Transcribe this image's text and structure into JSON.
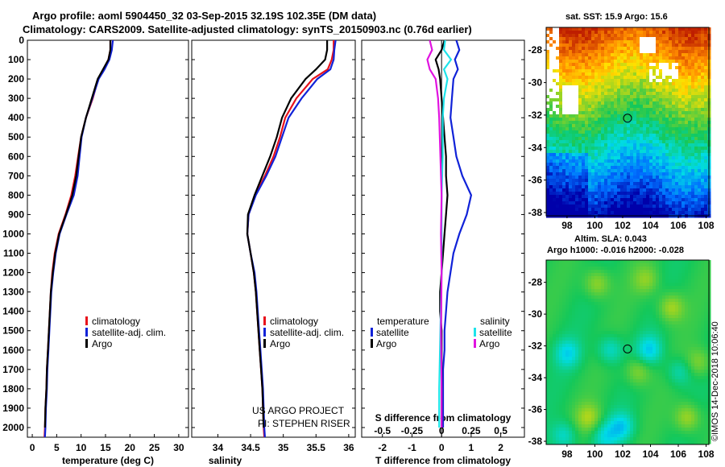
{
  "header": {
    "line1": "Argo profile: aoml 5904450_32 03-Sep-2015 32.19S 102.35E (DM data)",
    "line2": "Climatology: CARS2009. Satellite-adjusted climatology: synTS_20150903.nc (0.76d earlier)"
  },
  "colors": {
    "climatology": "#e8121b",
    "satellite": "#1022d8",
    "argo": "#000000",
    "sal_satellite": "#1de3ea",
    "sal_argo": "#e013e0"
  },
  "legend": {
    "climatology": "climatology",
    "satellite_adj": "satellite-adj. clim.",
    "argo": "Argo",
    "satellite": "satellite",
    "temperature_hdr": "temperature",
    "salinity_hdr": "salinity"
  },
  "credits": {
    "project": "US ARGO PROJECT",
    "pi": "PI: STEPHEN RISER",
    "imos": "©IMOS 14-Dec-2018 10:06:40"
  },
  "chart_data": [
    {
      "type": "line",
      "id": "temperature",
      "xlabel": "temperature (deg C)",
      "ylabel": "",
      "xlim": [
        -1,
        32
      ],
      "ylim": [
        2050,
        0
      ],
      "xticks": [
        0,
        5,
        10,
        15,
        20,
        25,
        30
      ],
      "yticks": [
        0,
        100,
        200,
        300,
        400,
        500,
        600,
        700,
        800,
        900,
        1000,
        1100,
        1200,
        1300,
        1400,
        1500,
        1600,
        1700,
        1800,
        1900,
        2000
      ],
      "series": [
        {
          "name": "climatology",
          "color": "#e8121b",
          "points": [
            [
              16,
              0
            ],
            [
              16,
              50
            ],
            [
              15.6,
              100
            ],
            [
              14.6,
              150
            ],
            [
              13.5,
              200
            ],
            [
              12.4,
              300
            ],
            [
              11,
              400
            ],
            [
              10,
              500
            ],
            [
              9.4,
              600
            ],
            [
              8.8,
              700
            ],
            [
              8,
              800
            ],
            [
              6.8,
              900
            ],
            [
              5.4,
              1000
            ],
            [
              4.6,
              1100
            ],
            [
              4.1,
              1200
            ],
            [
              3.8,
              1300
            ],
            [
              3.6,
              1400
            ],
            [
              3.4,
              1500
            ],
            [
              3.2,
              1600
            ],
            [
              3,
              1700
            ],
            [
              2.9,
              1800
            ],
            [
              2.7,
              1900
            ],
            [
              2.6,
              2000
            ],
            [
              2.5,
              2050
            ]
          ]
        },
        {
          "name": "satellite-adj. clim.",
          "color": "#1022d8",
          "points": [
            [
              16.5,
              0
            ],
            [
              16.3,
              50
            ],
            [
              15.8,
              100
            ],
            [
              14.8,
              150
            ],
            [
              13.6,
              200
            ],
            [
              12.3,
              300
            ],
            [
              11,
              400
            ],
            [
              10.1,
              500
            ],
            [
              9.7,
              600
            ],
            [
              9.3,
              700
            ],
            [
              8.5,
              800
            ],
            [
              7,
              900
            ],
            [
              5.6,
              1000
            ],
            [
              4.8,
              1100
            ],
            [
              4.3,
              1200
            ],
            [
              3.9,
              1300
            ],
            [
              3.7,
              1400
            ],
            [
              3.5,
              1500
            ],
            [
              3.3,
              1600
            ],
            [
              3.1,
              1700
            ],
            [
              3,
              1800
            ],
            [
              2.8,
              1900
            ],
            [
              2.7,
              2000
            ],
            [
              2.6,
              2050
            ]
          ]
        },
        {
          "name": "Argo",
          "color": "#000000",
          "points": [
            [
              16,
              0
            ],
            [
              16,
              50
            ],
            [
              15.6,
              100
            ],
            [
              14.5,
              150
            ],
            [
              13.4,
              200
            ],
            [
              12.2,
              300
            ],
            [
              11,
              400
            ],
            [
              10,
              500
            ],
            [
              9.5,
              600
            ],
            [
              9,
              700
            ],
            [
              8.2,
              800
            ],
            [
              6.9,
              900
            ],
            [
              5.5,
              1000
            ],
            [
              4.7,
              1100
            ],
            [
              4.2,
              1200
            ],
            [
              3.8,
              1300
            ],
            [
              3.6,
              1400
            ],
            [
              3.4,
              1500
            ],
            [
              3.2,
              1600
            ],
            [
              3,
              1700
            ],
            [
              2.9,
              1800
            ],
            [
              2.7,
              1900
            ],
            [
              2.6,
              2000
            ]
          ]
        }
      ]
    },
    {
      "type": "line",
      "id": "salinity",
      "xlabel": "salinity",
      "ylabel": "",
      "xlim": [
        33.6,
        36.1
      ],
      "ylim": [
        2050,
        0
      ],
      "xticks": [
        34,
        34.5,
        35,
        35.5,
        36
      ],
      "series": [
        {
          "name": "climatology",
          "color": "#e8121b",
          "points": [
            [
              35.77,
              0
            ],
            [
              35.77,
              50
            ],
            [
              35.74,
              100
            ],
            [
              35.68,
              150
            ],
            [
              35.45,
              200
            ],
            [
              35.2,
              300
            ],
            [
              35.03,
              400
            ],
            [
              34.95,
              500
            ],
            [
              34.85,
              600
            ],
            [
              34.72,
              700
            ],
            [
              34.57,
              800
            ],
            [
              34.47,
              900
            ],
            [
              34.45,
              1000
            ],
            [
              34.5,
              1100
            ],
            [
              34.55,
              1200
            ],
            [
              34.58,
              1300
            ],
            [
              34.6,
              1400
            ],
            [
              34.62,
              1500
            ],
            [
              34.64,
              1600
            ],
            [
              34.66,
              1700
            ],
            [
              34.68,
              1800
            ],
            [
              34.69,
              1900
            ],
            [
              34.7,
              2000
            ],
            [
              34.71,
              2050
            ]
          ]
        },
        {
          "name": "satellite-adj. clim.",
          "color": "#1022d8",
          "points": [
            [
              35.8,
              0
            ],
            [
              35.78,
              50
            ],
            [
              35.77,
              100
            ],
            [
              35.72,
              150
            ],
            [
              35.52,
              200
            ],
            [
              35.28,
              300
            ],
            [
              35.08,
              400
            ],
            [
              34.98,
              500
            ],
            [
              34.88,
              600
            ],
            [
              34.74,
              700
            ],
            [
              34.58,
              800
            ],
            [
              34.47,
              900
            ],
            [
              34.45,
              1000
            ],
            [
              34.5,
              1100
            ],
            [
              34.56,
              1200
            ],
            [
              34.59,
              1300
            ],
            [
              34.61,
              1400
            ],
            [
              34.63,
              1500
            ],
            [
              34.65,
              1600
            ],
            [
              34.67,
              1700
            ],
            [
              34.69,
              1800
            ],
            [
              34.7,
              1900
            ],
            [
              34.71,
              2000
            ],
            [
              34.72,
              2050
            ]
          ]
        },
        {
          "name": "Argo",
          "color": "#000000",
          "points": [
            [
              35.67,
              0
            ],
            [
              35.67,
              50
            ],
            [
              35.64,
              100
            ],
            [
              35.5,
              150
            ],
            [
              35.34,
              200
            ],
            [
              35.12,
              300
            ],
            [
              34.98,
              400
            ],
            [
              34.9,
              500
            ],
            [
              34.8,
              600
            ],
            [
              34.68,
              700
            ],
            [
              34.56,
              800
            ],
            [
              34.46,
              900
            ],
            [
              34.45,
              1000
            ],
            [
              34.5,
              1100
            ],
            [
              34.55,
              1200
            ],
            [
              34.58,
              1300
            ],
            [
              34.6,
              1400
            ],
            [
              34.62,
              1500
            ],
            [
              34.64,
              1600
            ],
            [
              34.66,
              1700
            ],
            [
              34.68,
              1800
            ],
            [
              34.69,
              1900
            ],
            [
              34.7,
              2000
            ]
          ]
        }
      ]
    },
    {
      "type": "line",
      "id": "difference",
      "xlabel": "T difference from climatology",
      "x2label": "S difference from climatology",
      "xlim": [
        -2.7,
        2.8
      ],
      "ylim": [
        2050,
        0
      ],
      "xticks": [
        -2,
        -1,
        0,
        1,
        2
      ],
      "x2ticks": [
        -0.5,
        -0.25,
        0,
        0.25,
        0.5
      ],
      "x2tick_labels": [
        "-0.5",
        "-0.25",
        "0",
        "0.25",
        "0.5"
      ],
      "x2lim": [
        -0.675,
        0.7
      ],
      "series": [
        {
          "name": "temperature satellite",
          "color": "#1022d8",
          "axis": "T",
          "points": [
            [
              0.5,
              0
            ],
            [
              0.6,
              50
            ],
            [
              0.45,
              100
            ],
            [
              0.55,
              150
            ],
            [
              0.4,
              200
            ],
            [
              0.35,
              300
            ],
            [
              0.3,
              400
            ],
            [
              0.4,
              500
            ],
            [
              0.5,
              600
            ],
            [
              0.7,
              700
            ],
            [
              1.0,
              800
            ],
            [
              0.85,
              900
            ],
            [
              0.6,
              1000
            ],
            [
              0.4,
              1100
            ],
            [
              0.3,
              1200
            ],
            [
              0.2,
              1300
            ],
            [
              0.15,
              1400
            ],
            [
              0.1,
              1500
            ],
            [
              0.1,
              1600
            ],
            [
              0.05,
              1700
            ],
            [
              0.05,
              1800
            ],
            [
              0.05,
              1900
            ],
            [
              0.05,
              2000
            ]
          ]
        },
        {
          "name": "temperature Argo",
          "color": "#000000",
          "axis": "T",
          "points": [
            [
              0.1,
              0
            ],
            [
              0.0,
              50
            ],
            [
              -0.2,
              100
            ],
            [
              -0.1,
              150
            ],
            [
              -0.05,
              200
            ],
            [
              0.0,
              300
            ],
            [
              0.05,
              400
            ],
            [
              0.1,
              500
            ],
            [
              0.15,
              600
            ],
            [
              0.15,
              700
            ],
            [
              0.2,
              800
            ],
            [
              0.15,
              900
            ],
            [
              0.1,
              1000
            ],
            [
              0.05,
              1100
            ],
            [
              0.0,
              1200
            ],
            [
              -0.05,
              1300
            ],
            [
              -0.05,
              1400
            ],
            [
              0.0,
              1500
            ],
            [
              0.0,
              1600
            ],
            [
              0.0,
              1700
            ],
            [
              0.0,
              1800
            ],
            [
              0.0,
              1900
            ],
            [
              0.0,
              2000
            ]
          ]
        },
        {
          "name": "salinity satellite",
          "color": "#1de3ea",
          "axis": "S",
          "points": [
            [
              0.03,
              0
            ],
            [
              0.02,
              50
            ],
            [
              0.08,
              100
            ],
            [
              0.02,
              150
            ],
            [
              0.05,
              200
            ],
            [
              0.02,
              300
            ],
            [
              0.01,
              400
            ],
            [
              0.01,
              600
            ],
            [
              0.0,
              800
            ],
            [
              0.0,
              1000
            ],
            [
              0.0,
              1200
            ],
            [
              -0.01,
              1500
            ],
            [
              -0.02,
              1800
            ],
            [
              -0.02,
              2000
            ]
          ]
        },
        {
          "name": "salinity Argo",
          "color": "#e013e0",
          "axis": "S",
          "points": [
            [
              -0.1,
              0
            ],
            [
              -0.08,
              50
            ],
            [
              -0.12,
              100
            ],
            [
              -0.1,
              150
            ],
            [
              -0.05,
              200
            ],
            [
              -0.03,
              300
            ],
            [
              -0.02,
              400
            ],
            [
              -0.01,
              600
            ],
            [
              0.0,
              800
            ],
            [
              -0.005,
              1000
            ],
            [
              0.0,
              1200
            ],
            [
              -0.005,
              1500
            ],
            [
              0.0,
              1800
            ],
            [
              0.0,
              2000
            ]
          ]
        }
      ]
    },
    {
      "type": "heatmap",
      "id": "sst_map",
      "title": "sat. SST: 15.9 Argo: 15.6",
      "xlim": [
        96.5,
        108.2
      ],
      "ylim": [
        -38.2,
        -26.6
      ],
      "xticks": [
        98,
        100,
        102,
        104,
        106,
        108
      ],
      "yticks": [
        -28,
        -30,
        -32,
        -34,
        -36,
        -38
      ],
      "marker": {
        "lon": 102.35,
        "lat": -32.19
      }
    },
    {
      "type": "heatmap",
      "id": "sla_map",
      "title": "Altim. SLA: 0.043",
      "subtitle": "Argo h1000: -0.016 h2000: -0.028",
      "xlim": [
        96.5,
        108.2
      ],
      "ylim": [
        -38.2,
        -26.6
      ],
      "xticks": [
        98,
        100,
        102,
        104,
        106,
        108
      ],
      "yticks": [
        -28,
        -30,
        -32,
        -34,
        -36,
        -38
      ],
      "marker": {
        "lon": 102.35,
        "lat": -32.19
      }
    }
  ]
}
